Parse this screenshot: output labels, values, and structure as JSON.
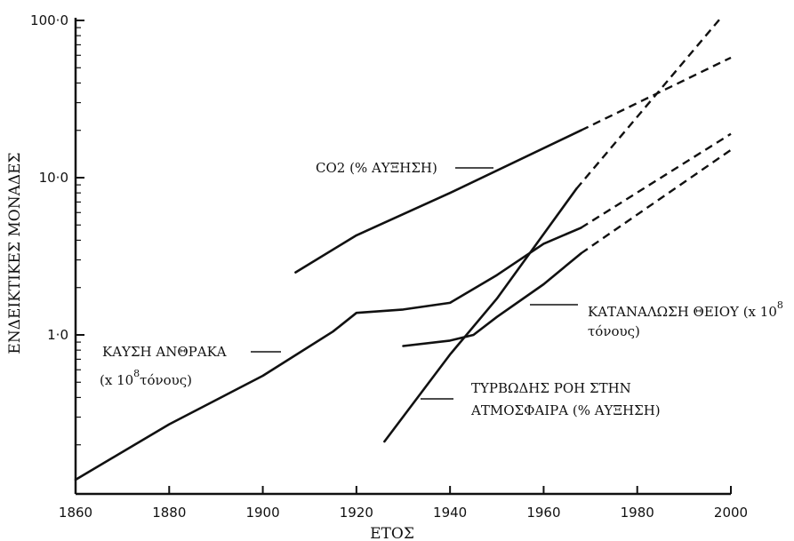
{
  "chart_data": {
    "type": "line",
    "xlabel": "ΕΤΟΣ",
    "ylabel": "ΕΝΔΕΙΚΤΙΚΕΣ ΜΟΝΑΔΕΣ",
    "x_ticks": [
      "1860",
      "1880",
      "1900",
      "1920",
      "1940",
      "1960",
      "1980",
      "2000"
    ],
    "y_ticks": [
      "1·0",
      "10·0",
      "100·0"
    ],
    "xlim": [
      1860,
      2000
    ],
    "ylim": [
      0.12,
      100
    ],
    "y_scale": "log",
    "grid": false,
    "series": [
      {
        "name": "CO2 (% ΑΥΞΗΣΗ)",
        "x": [
          1907,
          1920,
          1940,
          1968
        ],
        "y": [
          2.5,
          4.3,
          8.0,
          20.0
        ],
        "projection": {
          "x": [
            1968,
            2000
          ],
          "y": [
            20.0,
            58.0
          ]
        }
      },
      {
        "name": "ΚΑΥΣΗ ΑΝΘΡΑΚΑ (x 10⁸ τόνους)",
        "x": [
          1860,
          1880,
          1900,
          1915,
          1920,
          1930,
          1940,
          1950,
          1960,
          1968
        ],
        "y": [
          0.12,
          0.27,
          0.55,
          1.05,
          1.38,
          1.45,
          1.6,
          2.4,
          3.8,
          4.8
        ],
        "projection": {
          "x": [
            1968,
            2000
          ],
          "y": [
            4.8,
            19.0
          ]
        }
      },
      {
        "name": "ΚΑΤΑΝΑΛΩΣΗ ΘΕΙΟΥ (x 10⁸ τόνους)",
        "x": [
          1930,
          1940,
          1945,
          1950,
          1960,
          1968
        ],
        "y": [
          0.85,
          0.92,
          1.0,
          1.3,
          2.1,
          3.3
        ],
        "projection": {
          "x": [
            1968,
            2000
          ],
          "y": [
            3.3,
            15.0
          ]
        }
      },
      {
        "name": "ΤΥΡΒΩΔΗΣ ΡΟΗ ΣΤΗΝ ΑΤΜΟΣΦΑΙΡΑ (% ΑΥΞΗΣΗ)",
        "x": [
          1926,
          1940,
          1950,
          1967
        ],
        "y": [
          0.21,
          0.75,
          1.7,
          8.5
        ],
        "projection": {
          "x": [
            1967,
            1998
          ],
          "y": [
            8.5,
            105.0
          ]
        }
      }
    ]
  },
  "annotations": {
    "co2": "CO2 (% ΑΥΞΗΣΗ)",
    "coal_line1": "ΚΑΥΣΗ ΑΝΘΡΑΚΑ",
    "coal_line2_a": "(x 10",
    "coal_sup": "8",
    "coal_line2_b": "τόνους)",
    "sulfur_line1_a": "ΚΑΤΑΝΑΛΩΣΗ ΘΕΙΟΥ (x 10",
    "sulfur_sup": "8",
    "sulfur_line2": "τόνους)",
    "turb_line1": "ΤΥΡΒΩΔΗΣ ΡΟΗ ΣΤΗΝ",
    "turb_line2": "ΑΤΜΟΣΦΑΙΡΑ (% ΑΥΞΗΣΗ)"
  }
}
